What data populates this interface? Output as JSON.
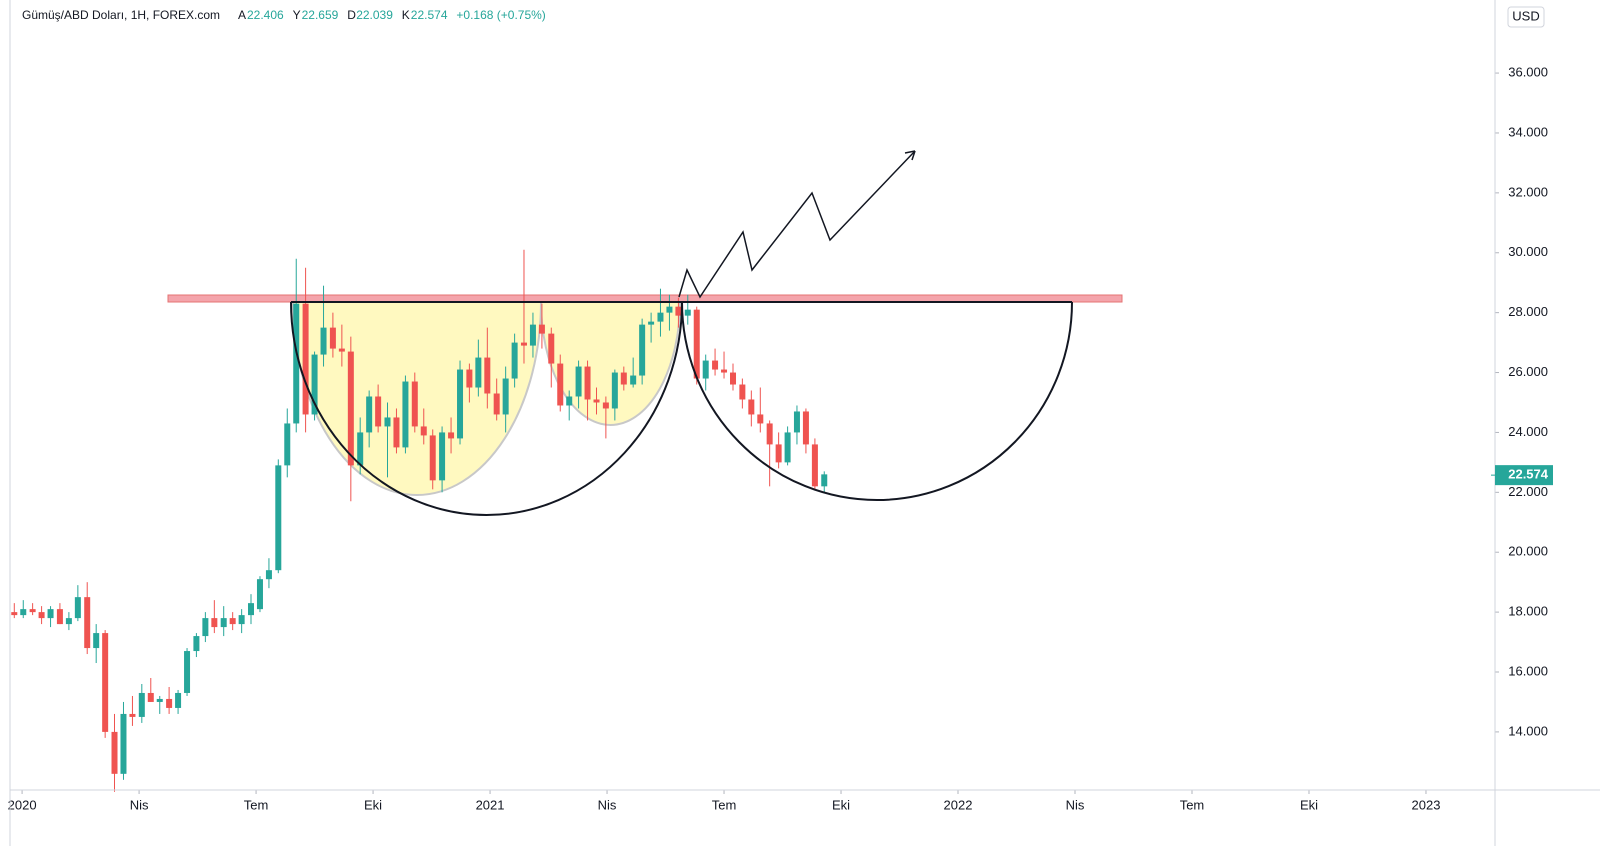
{
  "header": {
    "symbol": "Gümüş/ABD Doları, 1H, FOREX.com",
    "ohlc": [
      {
        "label": "A",
        "value": "22.406"
      },
      {
        "label": "Y",
        "value": "22.659"
      },
      {
        "label": "D",
        "value": "22.039"
      },
      {
        "label": "K",
        "value": "22.574"
      }
    ],
    "change": "+0.168 (+0.75%)",
    "currency": "USD"
  },
  "chart_data": {
    "type": "candlestick",
    "up_color": "#26a69a",
    "down_color": "#ef5350",
    "x": [
      -0.2,
      0.03,
      0.27,
      0.5,
      0.73,
      0.97,
      1.2,
      1.43,
      1.67,
      1.9,
      2.13,
      2.37,
      2.6,
      2.83,
      3.07,
      3.3,
      3.53,
      3.77,
      4.0,
      4.23,
      4.47,
      4.7,
      4.93,
      5.17,
      5.4,
      5.63,
      5.87,
      6.1,
      6.33,
      6.57,
      6.8,
      7.03,
      7.27,
      7.5,
      7.73,
      7.97,
      8.2,
      8.43,
      8.67,
      8.9,
      9.13,
      9.37,
      9.6,
      9.83,
      10.07,
      10.3,
      10.53,
      10.77,
      11.0,
      11.23,
      11.47,
      11.7,
      11.93,
      12.17,
      12.4,
      12.63,
      12.87,
      13.1,
      13.33,
      13.57,
      13.8,
      14.03,
      14.27,
      14.5,
      14.73,
      14.97,
      15.2,
      15.43,
      15.67,
      15.9,
      16.13,
      16.37,
      16.6,
      16.83,
      17.07,
      17.3,
      17.53,
      17.77,
      18.0,
      18.23,
      18.47,
      18.7,
      18.93,
      19.17,
      19.4,
      19.63,
      19.87,
      20.1,
      20.33,
      20.57
    ],
    "open": [
      18.0,
      17.9,
      18.1,
      18.0,
      17.8,
      18.1,
      17.6,
      17.8,
      18.5,
      16.8,
      17.3,
      14.0,
      12.6,
      14.6,
      14.5,
      15.3,
      15.0,
      15.1,
      14.8,
      15.3,
      16.7,
      17.2,
      17.8,
      17.5,
      17.8,
      17.6,
      17.9,
      18.1,
      19.1,
      19.4,
      22.9,
      24.3,
      28.3,
      24.6,
      26.6,
      27.5,
      26.8,
      26.7,
      22.9,
      24.0,
      25.2,
      24.2,
      24.5,
      23.5,
      25.7,
      24.2,
      23.9,
      22.4,
      24.0,
      23.8,
      26.1,
      25.5,
      26.5,
      25.3,
      24.6,
      25.8,
      27.0,
      26.9,
      27.6,
      27.3,
      26.3,
      24.9,
      25.2,
      26.2,
      25.1,
      25.0,
      24.8,
      26.0,
      25.6,
      25.9,
      27.6,
      27.7,
      28.0,
      28.2,
      27.9,
      28.1,
      25.8,
      26.4,
      26.1,
      26.0,
      25.6,
      25.1,
      24.6,
      24.3,
      23.6,
      23.0,
      24.0,
      24.7,
      23.6,
      22.2
    ],
    "high": [
      18.3,
      18.4,
      18.3,
      18.2,
      18.2,
      18.3,
      18.0,
      18.9,
      19.0,
      17.6,
      17.4,
      14.6,
      15.0,
      15.2,
      15.6,
      15.8,
      15.2,
      15.5,
      15.4,
      16.8,
      17.3,
      18.0,
      18.4,
      18.2,
      18.0,
      18.1,
      18.6,
      19.2,
      19.8,
      23.1,
      24.8,
      29.8,
      29.5,
      26.7,
      28.9,
      28.0,
      27.6,
      27.2,
      24.5,
      25.4,
      25.6,
      25.0,
      24.8,
      25.9,
      26.0,
      24.8,
      24.1,
      24.2,
      24.5,
      26.4,
      26.3,
      27.1,
      27.5,
      25.8,
      26.2,
      27.3,
      30.1,
      28.0,
      28.3,
      27.5,
      26.6,
      25.4,
      26.4,
      26.4,
      25.5,
      25.2,
      26.1,
      26.2,
      26.5,
      27.8,
      28.0,
      28.8,
      28.6,
      28.5,
      28.6,
      28.2,
      26.6,
      26.8,
      26.7,
      26.3,
      25.8,
      25.4,
      25.5,
      24.4,
      24.0,
      24.2,
      24.9,
      24.8,
      23.8,
      22.7
    ],
    "low": [
      17.8,
      17.8,
      17.9,
      17.6,
      17.5,
      17.6,
      17.4,
      17.7,
      16.6,
      16.3,
      13.8,
      12.0,
      12.4,
      14.2,
      14.3,
      15.0,
      14.6,
      14.6,
      14.6,
      15.2,
      16.5,
      17.0,
      17.3,
      17.2,
      17.4,
      17.3,
      17.6,
      18.0,
      18.8,
      19.3,
      22.5,
      24.0,
      24.0,
      24.4,
      26.2,
      26.5,
      26.2,
      21.7,
      22.6,
      23.5,
      24.0,
      22.5,
      23.3,
      23.3,
      24.0,
      23.6,
      22.1,
      22.0,
      23.3,
      23.6,
      25.0,
      25.2,
      24.8,
      24.4,
      24.0,
      25.5,
      26.3,
      26.5,
      26.8,
      25.5,
      24.7,
      24.4,
      24.8,
      24.4,
      24.6,
      23.8,
      24.4,
      25.4,
      25.5,
      25.6,
      27.0,
      27.2,
      27.4,
      27.5,
      27.6,
      25.6,
      25.4,
      25.9,
      25.8,
      25.4,
      24.8,
      24.2,
      24.0,
      22.2,
      22.8,
      22.9,
      23.6,
      23.3,
      22.1,
      22.0
    ],
    "close": [
      17.9,
      18.1,
      18.0,
      17.8,
      18.1,
      17.6,
      17.8,
      18.5,
      16.8,
      17.3,
      14.0,
      12.6,
      14.6,
      14.5,
      15.3,
      15.0,
      15.1,
      14.8,
      15.3,
      16.7,
      17.2,
      17.8,
      17.5,
      17.8,
      17.6,
      17.9,
      18.3,
      19.1,
      19.4,
      22.9,
      24.3,
      28.3,
      24.6,
      26.6,
      27.5,
      26.8,
      26.7,
      22.9,
      24.0,
      25.2,
      24.2,
      24.5,
      23.5,
      25.7,
      24.2,
      23.9,
      22.4,
      24.0,
      23.8,
      26.1,
      25.5,
      26.5,
      25.3,
      24.6,
      25.8,
      27.0,
      26.9,
      27.6,
      27.3,
      26.3,
      24.9,
      25.2,
      26.2,
      25.1,
      25.0,
      24.8,
      26.0,
      25.6,
      25.9,
      27.6,
      27.7,
      28.0,
      28.2,
      27.9,
      28.1,
      25.8,
      26.4,
      26.1,
      26.0,
      25.6,
      25.1,
      24.6,
      24.3,
      23.6,
      23.0,
      24.0,
      24.7,
      23.6,
      22.2,
      22.6
    ],
    "xlim": [
      -0.31,
      37.77
    ],
    "xticks": [
      {
        "value": 0,
        "label": "2020"
      },
      {
        "value": 3,
        "label": "Nis"
      },
      {
        "value": 6,
        "label": "Tem"
      },
      {
        "value": 9,
        "label": "Eki"
      },
      {
        "value": 12,
        "label": "2021"
      },
      {
        "value": 15,
        "label": "Nis"
      },
      {
        "value": 18,
        "label": "Tem"
      },
      {
        "value": 21,
        "label": "Eki"
      },
      {
        "value": 24,
        "label": "2022"
      },
      {
        "value": 27,
        "label": "Nis"
      },
      {
        "value": 30,
        "label": "Tem"
      },
      {
        "value": 33,
        "label": "Eki"
      },
      {
        "value": 36,
        "label": "2023"
      }
    ],
    "ylim": [
      12.06,
      38.44
    ],
    "yticks": [
      {
        "value": 14,
        "label": "14.000"
      },
      {
        "value": 16,
        "label": "16.000"
      },
      {
        "value": 18,
        "label": "18.000"
      },
      {
        "value": 20,
        "label": "20.000"
      },
      {
        "value": 22,
        "label": "22.000"
      },
      {
        "value": 24,
        "label": "24.000"
      },
      {
        "value": 26,
        "label": "26.000"
      },
      {
        "value": 28,
        "label": "28.000"
      },
      {
        "value": 30,
        "label": "30.000"
      },
      {
        "value": 32,
        "label": "32.000"
      },
      {
        "value": 34,
        "label": "34.000"
      },
      {
        "value": 36,
        "label": "36.000"
      }
    ],
    "last_price": {
      "value": 22.574,
      "label": "22.574"
    }
  }
}
